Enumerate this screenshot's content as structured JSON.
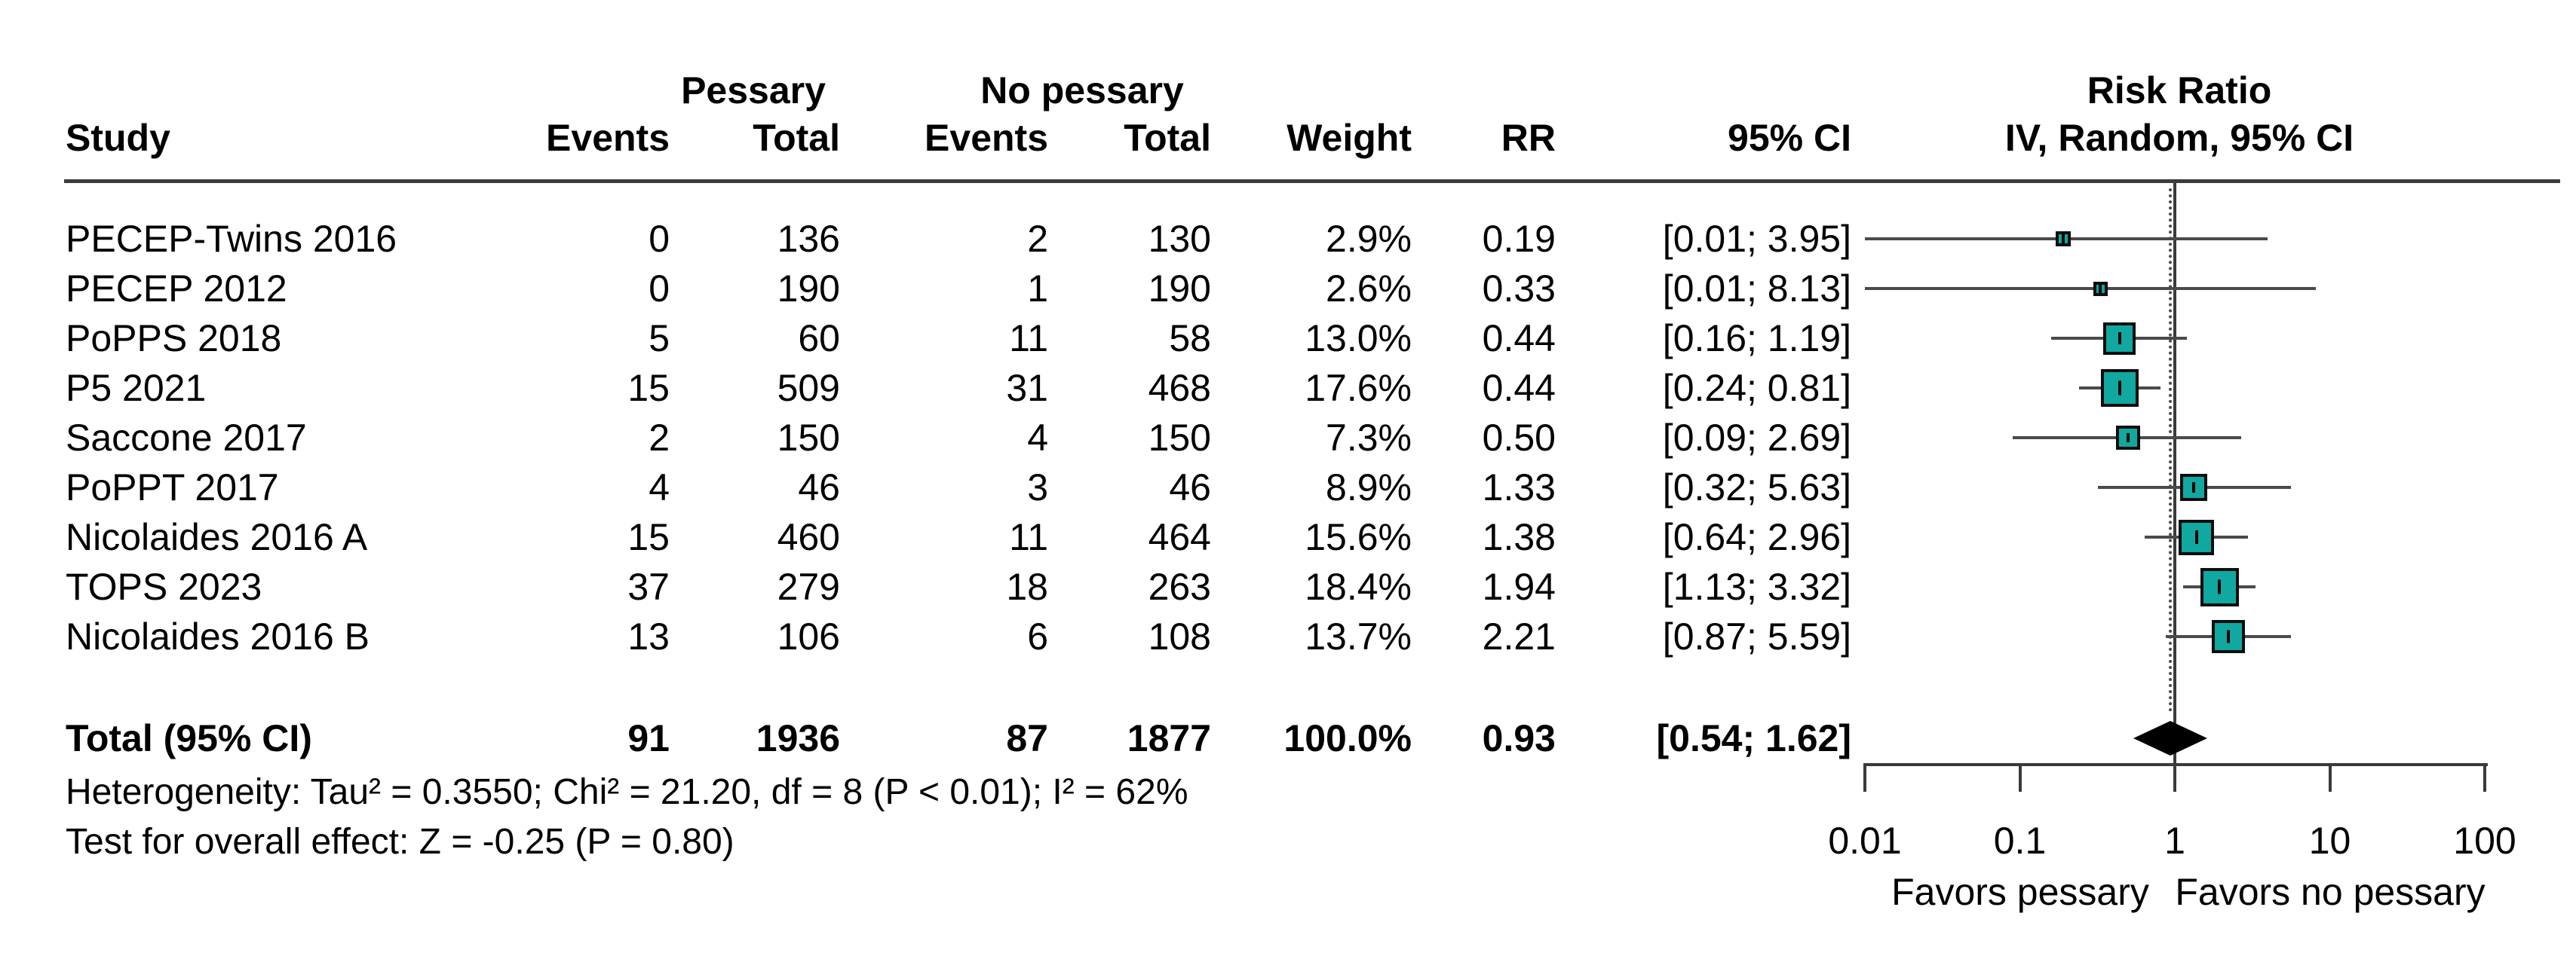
{
  "figure": {
    "group1": "Pessary",
    "group2": "No pessary",
    "col_study": "Study",
    "col_events1": "Events",
    "col_total1": "Total",
    "col_events2": "Events",
    "col_total2": "Total",
    "col_weight": "Weight",
    "col_rr": "RR",
    "col_ci": "95% CI",
    "plot_title": "Risk Ratio",
    "plot_subtitle": "IV, Random, 95% CI"
  },
  "colors": {
    "square_fill": "#10a8a0",
    "ci_line": "#4a4a4a",
    "axis_line": "#3a3a3a",
    "diamond": "#000000",
    "text": "#000000"
  },
  "chart_data": {
    "type": "scatter",
    "subtype": "forest-plot",
    "title": "Risk Ratio",
    "effect_model": "IV, Random, 95% CI",
    "x_scale": "log10",
    "x_ticks": [
      0.01,
      0.1,
      1,
      10,
      100
    ],
    "x_tick_labels": [
      "0.01",
      "0.1",
      "1",
      "10",
      "100"
    ],
    "x_axis_left_label": "Favors pessary",
    "x_axis_right_label": "Favors no pessary",
    "reference_line": 1.0,
    "overall_dashed_line": 0.93,
    "studies": [
      {
        "study": "PECEP-Twins 2016",
        "pessary_events": "0",
        "pessary_total": "136",
        "no_pessary_events": "2",
        "no_pessary_total": "130",
        "weight": "2.9%",
        "weight_value": 2.9,
        "rr": "0.19",
        "rr_value": 0.19,
        "ci": "[0.01; 3.95]",
        "ci_low": 0.01,
        "ci_high": 3.95
      },
      {
        "study": "PECEP 2012",
        "pessary_events": "0",
        "pessary_total": "190",
        "no_pessary_events": "1",
        "no_pessary_total": "190",
        "weight": "2.6%",
        "weight_value": 2.6,
        "rr": "0.33",
        "rr_value": 0.33,
        "ci": "[0.01; 8.13]",
        "ci_low": 0.01,
        "ci_high": 8.13
      },
      {
        "study": "PoPPS 2018",
        "pessary_events": "5",
        "pessary_total": "60",
        "no_pessary_events": "11",
        "no_pessary_total": "58",
        "weight": "13.0%",
        "weight_value": 13.0,
        "rr": "0.44",
        "rr_value": 0.44,
        "ci": "[0.16; 1.19]",
        "ci_low": 0.16,
        "ci_high": 1.19
      },
      {
        "study": "P5 2021",
        "pessary_events": "15",
        "pessary_total": "509",
        "no_pessary_events": "31",
        "no_pessary_total": "468",
        "weight": "17.6%",
        "weight_value": 17.6,
        "rr": "0.44",
        "rr_value": 0.44,
        "ci": "[0.24; 0.81]",
        "ci_low": 0.24,
        "ci_high": 0.81
      },
      {
        "study": "Saccone 2017",
        "pessary_events": "2",
        "pessary_total": "150",
        "no_pessary_events": "4",
        "no_pessary_total": "150",
        "weight": "7.3%",
        "weight_value": 7.3,
        "rr": "0.50",
        "rr_value": 0.5,
        "ci": "[0.09; 2.69]",
        "ci_low": 0.09,
        "ci_high": 2.69
      },
      {
        "study": "PoPPT 2017",
        "pessary_events": "4",
        "pessary_total": "46",
        "no_pessary_events": "3",
        "no_pessary_total": "46",
        "weight": "8.9%",
        "weight_value": 8.9,
        "rr": "1.33",
        "rr_value": 1.33,
        "ci": "[0.32; 5.63]",
        "ci_low": 0.32,
        "ci_high": 5.63
      },
      {
        "study": "Nicolaides 2016 A",
        "pessary_events": "15",
        "pessary_total": "460",
        "no_pessary_events": "11",
        "no_pessary_total": "464",
        "weight": "15.6%",
        "weight_value": 15.6,
        "rr": "1.38",
        "rr_value": 1.38,
        "ci": "[0.64; 2.96]",
        "ci_low": 0.64,
        "ci_high": 2.96
      },
      {
        "study": "TOPS 2023",
        "pessary_events": "37",
        "pessary_total": "279",
        "no_pessary_events": "18",
        "no_pessary_total": "263",
        "weight": "18.4%",
        "weight_value": 18.4,
        "rr": "1.94",
        "rr_value": 1.94,
        "ci": "[1.13; 3.32]",
        "ci_low": 1.13,
        "ci_high": 3.32
      },
      {
        "study": "Nicolaides 2016 B",
        "pessary_events": "13",
        "pessary_total": "106",
        "no_pessary_events": "6",
        "no_pessary_total": "108",
        "weight": "13.7%",
        "weight_value": 13.7,
        "rr": "2.21",
        "rr_value": 2.21,
        "ci": "[0.87; 5.59]",
        "ci_low": 0.87,
        "ci_high": 5.59
      }
    ],
    "total": {
      "label": "Total (95% CI)",
      "pessary_events": "91",
      "pessary_total": "1936",
      "no_pessary_events": "87",
      "no_pessary_total": "1877",
      "weight": "100.0%",
      "rr": "0.93",
      "rr_value": 0.93,
      "ci": "[0.54; 1.62]",
      "ci_low": 0.54,
      "ci_high": 1.62
    },
    "heterogeneity": "Heterogeneity: Tau² = 0.3550; Chi² = 21.20, df = 8 (P < 0.01); I² = 62%",
    "overall_effect_test": "Test for overall effect: Z = -0.25 (P = 0.80)"
  }
}
